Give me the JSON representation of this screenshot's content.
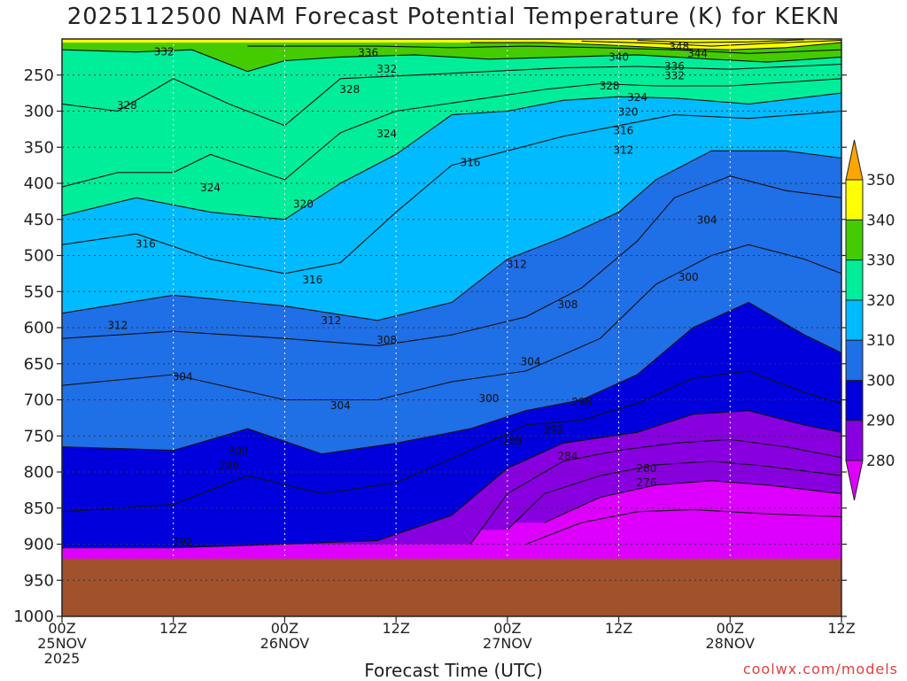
{
  "chart_data": {
    "type": "heatmap",
    "title": "2025112500 NAM Forecast Potential Temperature (K) for KEKN",
    "xlabel": "Forecast Time (UTC)",
    "ylabel": "",
    "credit": "coolwx.com/models",
    "x_range_hours": [
      0,
      84
    ],
    "y_range_hpa": [
      200,
      1000
    ],
    "y_ticks": [
      250,
      300,
      350,
      400,
      450,
      500,
      550,
      600,
      650,
      700,
      750,
      800,
      850,
      900,
      950,
      1000
    ],
    "y_tick_labels": [
      "250",
      "300",
      "350",
      "400",
      "450",
      "500",
      "550",
      "600",
      "650",
      "700",
      "750",
      "800",
      "850",
      "900",
      "950",
      "1000"
    ],
    "x_ticks": [
      {
        "hour": 0,
        "lines": [
          "00Z",
          "25NOV",
          "2025"
        ]
      },
      {
        "hour": 12,
        "lines": [
          "12Z"
        ]
      },
      {
        "hour": 24,
        "lines": [
          "00Z",
          "26NOV"
        ]
      },
      {
        "hour": 36,
        "lines": [
          "12Z"
        ]
      },
      {
        "hour": 48,
        "lines": [
          "00Z",
          "27NOV"
        ]
      },
      {
        "hour": 60,
        "lines": [
          "12Z"
        ]
      },
      {
        "hour": 72,
        "lines": [
          "00Z",
          "28NOV"
        ]
      },
      {
        "hour": 84,
        "lines": [
          "12Z"
        ]
      }
    ],
    "surface_pressure_hpa": 920,
    "ground_color": "#a0522d",
    "colorbar": {
      "levels": [
        280,
        290,
        300,
        310,
        320,
        330,
        340,
        350
      ],
      "labels": [
        "280",
        "290",
        "300",
        "310",
        "320",
        "330",
        "340",
        "350"
      ],
      "colors": [
        "#dd00ff",
        "#8800e0",
        "#0000dd",
        "#1f6fe6",
        "#00bbff",
        "#00ee99",
        "#44cc00",
        "#ffff00",
        "#ffa500"
      ]
    },
    "isentropes": [
      {
        "theta": 276,
        "points": [
          [
            50,
            900
          ],
          [
            56,
            870
          ],
          [
            62,
            855
          ],
          [
            68,
            852
          ],
          [
            76,
            858
          ],
          [
            84,
            862
          ]
        ]
      },
      {
        "theta": 280,
        "points": [
          [
            52,
            870
          ],
          [
            58,
            835
          ],
          [
            64,
            818
          ],
          [
            70,
            812
          ],
          [
            76,
            818
          ],
          [
            84,
            830
          ]
        ]
      },
      {
        "theta": 284,
        "points": [
          [
            48,
            880
          ],
          [
            52,
            830
          ],
          [
            58,
            805
          ],
          [
            64,
            790
          ],
          [
            70,
            785
          ],
          [
            76,
            792
          ],
          [
            84,
            805
          ]
        ]
      },
      {
        "theta": 288,
        "points": [
          [
            44,
            900
          ],
          [
            48,
            830
          ],
          [
            54,
            785
          ],
          [
            60,
            770
          ],
          [
            66,
            760
          ],
          [
            72,
            755
          ],
          [
            78,
            765
          ],
          [
            84,
            780
          ]
        ]
      },
      {
        "theta": 292,
        "points": [
          [
            0,
            905
          ],
          [
            12,
            905
          ],
          [
            24,
            900
          ],
          [
            34,
            895
          ],
          [
            42,
            860
          ],
          [
            48,
            795
          ],
          [
            54,
            760
          ],
          [
            62,
            745
          ],
          [
            68,
            720
          ],
          [
            74,
            715
          ],
          [
            80,
            735
          ],
          [
            84,
            745
          ]
        ]
      },
      {
        "theta": 296,
        "points": [
          [
            0,
            855
          ],
          [
            12,
            845
          ],
          [
            20,
            805
          ],
          [
            28,
            830
          ],
          [
            36,
            815
          ],
          [
            44,
            770
          ],
          [
            50,
            735
          ],
          [
            56,
            728
          ],
          [
            62,
            705
          ],
          [
            68,
            670
          ],
          [
            74,
            660
          ],
          [
            80,
            690
          ],
          [
            84,
            705
          ]
        ]
      },
      {
        "theta": 300,
        "points": [
          [
            0,
            765
          ],
          [
            12,
            770
          ],
          [
            20,
            740
          ],
          [
            28,
            775
          ],
          [
            36,
            760
          ],
          [
            44,
            740
          ],
          [
            50,
            715
          ],
          [
            56,
            700
          ],
          [
            62,
            665
          ],
          [
            68,
            600
          ],
          [
            74,
            565
          ],
          [
            80,
            610
          ],
          [
            84,
            635
          ]
        ]
      },
      {
        "theta": 304,
        "points": [
          [
            0,
            680
          ],
          [
            12,
            665
          ],
          [
            24,
            700
          ],
          [
            34,
            700
          ],
          [
            42,
            675
          ],
          [
            50,
            660
          ],
          [
            58,
            615
          ],
          [
            64,
            540
          ],
          [
            70,
            500
          ],
          [
            74,
            485
          ],
          [
            80,
            505
          ],
          [
            84,
            525
          ]
        ]
      },
      {
        "theta": 308,
        "points": [
          [
            0,
            615
          ],
          [
            12,
            605
          ],
          [
            24,
            615
          ],
          [
            34,
            625
          ],
          [
            42,
            610
          ],
          [
            50,
            585
          ],
          [
            56,
            545
          ],
          [
            62,
            480
          ],
          [
            66,
            420
          ],
          [
            72,
            390
          ],
          [
            78,
            410
          ],
          [
            84,
            420
          ]
        ]
      },
      {
        "theta": 312,
        "points": [
          [
            0,
            580
          ],
          [
            12,
            555
          ],
          [
            24,
            570
          ],
          [
            34,
            590
          ],
          [
            42,
            565
          ],
          [
            48,
            505
          ],
          [
            54,
            475
          ],
          [
            60,
            440
          ],
          [
            64,
            395
          ],
          [
            70,
            355
          ],
          [
            78,
            355
          ],
          [
            84,
            365
          ]
        ]
      },
      {
        "theta": 316,
        "points": [
          [
            0,
            485
          ],
          [
            8,
            470
          ],
          [
            16,
            505
          ],
          [
            24,
            525
          ],
          [
            30,
            510
          ],
          [
            36,
            440
          ],
          [
            42,
            375
          ],
          [
            48,
            355
          ],
          [
            54,
            335
          ],
          [
            60,
            320
          ],
          [
            66,
            305
          ],
          [
            74,
            310
          ],
          [
            84,
            300
          ]
        ]
      },
      {
        "theta": 320,
        "points": [
          [
            0,
            445
          ],
          [
            8,
            420
          ],
          [
            16,
            440
          ],
          [
            24,
            450
          ],
          [
            30,
            400
          ],
          [
            36,
            360
          ],
          [
            42,
            305
          ],
          [
            48,
            300
          ],
          [
            54,
            285
          ],
          [
            60,
            280
          ],
          [
            66,
            282
          ],
          [
            74,
            290
          ],
          [
            84,
            275
          ]
        ]
      },
      {
        "theta": 324,
        "points": [
          [
            0,
            405
          ],
          [
            6,
            385
          ],
          [
            12,
            385
          ],
          [
            16,
            360
          ],
          [
            24,
            395
          ],
          [
            30,
            330
          ],
          [
            36,
            300
          ],
          [
            44,
            285
          ],
          [
            52,
            270
          ],
          [
            58,
            262
          ],
          [
            64,
            265
          ],
          [
            72,
            265
          ],
          [
            84,
            255
          ]
        ]
      },
      {
        "theta": 328,
        "points": [
          [
            0,
            290
          ],
          [
            6,
            300
          ],
          [
            12,
            255
          ],
          [
            18,
            290
          ],
          [
            24,
            320
          ],
          [
            30,
            255
          ],
          [
            38,
            250
          ],
          [
            46,
            245
          ],
          [
            54,
            240
          ],
          [
            62,
            238
          ],
          [
            72,
            242
          ],
          [
            84,
            235
          ]
        ]
      },
      {
        "theta": 332,
        "points": [
          [
            0,
            215
          ],
          [
            8,
            218
          ],
          [
            14,
            215
          ],
          [
            20,
            245
          ],
          [
            24,
            230
          ],
          [
            30,
            225
          ],
          [
            38,
            222
          ],
          [
            46,
            228
          ],
          [
            54,
            225
          ],
          [
            62,
            222
          ],
          [
            70,
            228
          ],
          [
            76,
            232
          ],
          [
            84,
            225
          ]
        ]
      },
      {
        "theta": 336,
        "points": [
          [
            20,
            210
          ],
          [
            26,
            210
          ],
          [
            34,
            210
          ],
          [
            42,
            212
          ],
          [
            50,
            210
          ],
          [
            58,
            212
          ],
          [
            66,
            215
          ],
          [
            74,
            220
          ],
          [
            84,
            215
          ]
        ]
      },
      {
        "theta": 340,
        "points": [
          [
            44,
            205
          ],
          [
            52,
            205
          ],
          [
            58,
            208
          ],
          [
            66,
            213
          ],
          [
            72,
            215
          ],
          [
            78,
            212
          ],
          [
            84,
            205
          ]
        ]
      },
      {
        "theta": 344,
        "points": [
          [
            56,
            203
          ],
          [
            64,
            206
          ],
          [
            70,
            210
          ],
          [
            76,
            206
          ],
          [
            84,
            202
          ]
        ]
      },
      {
        "theta": 348,
        "points": [
          [
            62,
            202
          ],
          [
            68,
            205
          ],
          [
            74,
            204
          ],
          [
            80,
            201
          ]
        ]
      }
    ],
    "contour_labels": [
      {
        "text": "348",
        "x": 66.5,
        "p": 211
      },
      {
        "text": "344",
        "x": 68.5,
        "p": 220
      },
      {
        "text": "340",
        "x": 60,
        "p": 225
      },
      {
        "text": "336",
        "x": 66,
        "p": 238
      },
      {
        "text": "332",
        "x": 66,
        "p": 251
      },
      {
        "text": "328",
        "x": 59,
        "p": 265
      },
      {
        "text": "324",
        "x": 62,
        "p": 281
      },
      {
        "text": "320",
        "x": 61,
        "p": 301
      },
      {
        "text": "316",
        "x": 60.5,
        "p": 327
      },
      {
        "text": "312",
        "x": 60.5,
        "p": 354
      },
      {
        "text": "304",
        "x": 69.5,
        "p": 451
      },
      {
        "text": "300",
        "x": 67.5,
        "p": 530
      },
      {
        "text": "308",
        "x": 54.5,
        "p": 568
      },
      {
        "text": "312",
        "x": 49,
        "p": 512
      },
      {
        "text": "304",
        "x": 50.5,
        "p": 647
      },
      {
        "text": "300",
        "x": 46,
        "p": 698
      },
      {
        "text": "296",
        "x": 56,
        "p": 703
      },
      {
        "text": "292",
        "x": 53,
        "p": 742
      },
      {
        "text": "288",
        "x": 48.5,
        "p": 757
      },
      {
        "text": "284",
        "x": 54.5,
        "p": 778
      },
      {
        "text": "280",
        "x": 63,
        "p": 795
      },
      {
        "text": "276",
        "x": 63,
        "p": 815
      },
      {
        "text": "332",
        "x": 11,
        "p": 218
      },
      {
        "text": "336",
        "x": 33,
        "p": 219
      },
      {
        "text": "332",
        "x": 35,
        "p": 242
      },
      {
        "text": "328",
        "x": 31,
        "p": 270
      },
      {
        "text": "328",
        "x": 7,
        "p": 292
      },
      {
        "text": "324",
        "x": 35,
        "p": 331
      },
      {
        "text": "316",
        "x": 44,
        "p": 371
      },
      {
        "text": "324",
        "x": 16,
        "p": 406
      },
      {
        "text": "320",
        "x": 26,
        "p": 429
      },
      {
        "text": "316",
        "x": 9,
        "p": 484
      },
      {
        "text": "316",
        "x": 27,
        "p": 534
      },
      {
        "text": "312",
        "x": 6,
        "p": 597
      },
      {
        "text": "312",
        "x": 29,
        "p": 590
      },
      {
        "text": "308",
        "x": 35,
        "p": 617
      },
      {
        "text": "304",
        "x": 13,
        "p": 668
      },
      {
        "text": "304",
        "x": 30,
        "p": 708
      },
      {
        "text": "300",
        "x": 19,
        "p": 771
      },
      {
        "text": "296",
        "x": 18,
        "p": 791
      },
      {
        "text": "292",
        "x": 13,
        "p": 897
      }
    ]
  }
}
